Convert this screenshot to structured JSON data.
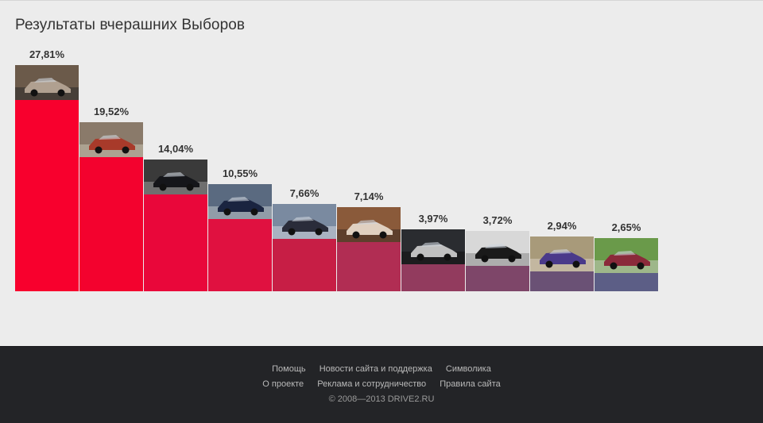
{
  "page": {
    "title": "Результаты вчерашних Выборов"
  },
  "chart_data": {
    "type": "bar",
    "categories": [
      "",
      "",
      "",
      "",
      "",
      "",
      "",
      "",
      "",
      ""
    ],
    "values": [
      27.81,
      19.52,
      14.04,
      10.55,
      7.66,
      7.14,
      3.97,
      3.72,
      2.94,
      2.65
    ],
    "labels": [
      "27,81%",
      "19,52%",
      "14,04%",
      "10,55%",
      "7,66%",
      "7,14%",
      "3,97%",
      "3,72%",
      "2,94%",
      "2,65%"
    ],
    "colors": [
      "#f8002d",
      "#f3022e",
      "#e9073a",
      "#e01140",
      "#c71e45",
      "#b12d53",
      "#923b5e",
      "#7e4669",
      "#6a5175",
      "#5c5e86"
    ],
    "ylim": [
      0,
      27.81
    ],
    "grid": false,
    "legend": "none",
    "title": "Результаты вчерашних Выборов",
    "xlabel": "",
    "ylabel": ""
  },
  "footer": {
    "row1": [
      "Помощь",
      "Новости сайта и поддержка",
      "Символика"
    ],
    "row2": [
      "О проекте",
      "Реклама и сотрудничество",
      "Правила сайта"
    ],
    "copyright": "© 2008—2013 DRIVE2.RU"
  }
}
